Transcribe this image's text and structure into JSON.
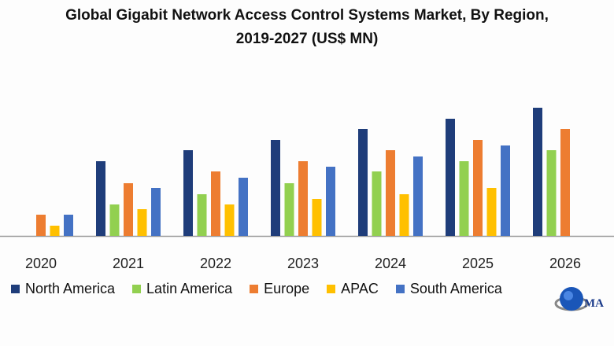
{
  "chart_data": {
    "type": "bar",
    "title": "Global Gigabit Network Access Control Systems Market, By Region,",
    "subtitle": "2019-2027 (US$ MN)",
    "xlabel": "",
    "ylabel": "",
    "categories": [
      "2020",
      "2021",
      "2022",
      "2023",
      "2024",
      "2025",
      "2026"
    ],
    "series": [
      {
        "name": "North America",
        "color": "#1f3d7a",
        "values": [
          null,
          95,
          109,
          122,
          136,
          149,
          163
        ]
      },
      {
        "name": "Latin America",
        "color": "#92d050",
        "values": [
          null,
          40,
          53,
          67,
          82,
          95,
          109
        ]
      },
      {
        "name": "Europe",
        "color": "#ed7d31",
        "values": [
          27,
          67,
          82,
          95,
          109,
          122,
          136
        ]
      },
      {
        "name": "APAC",
        "color": "#ffc000",
        "values": [
          13,
          34,
          40,
          47,
          53,
          61,
          null
        ]
      },
      {
        "name": "South America",
        "color": "#4472c4",
        "values": [
          27,
          61,
          74,
          88,
          101,
          115,
          null
        ]
      }
    ],
    "grid": false,
    "y_axis_shown": false,
    "legend_placement": "bottom"
  },
  "logo": {
    "text": "MMR"
  }
}
